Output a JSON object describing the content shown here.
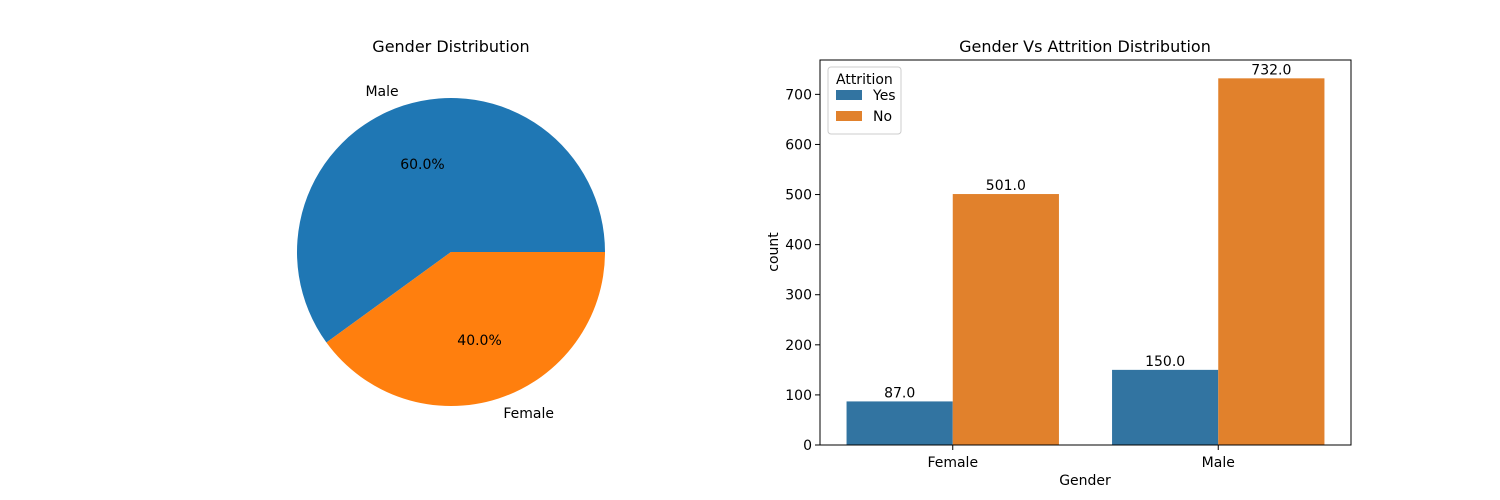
{
  "chart_data": [
    {
      "type": "pie",
      "title": "Gender Distribution",
      "slices": [
        {
          "label": "Male",
          "value": 60.0,
          "pct_label": "60.0%",
          "color": "#1f77b4"
        },
        {
          "label": "Female",
          "value": 40.0,
          "pct_label": "40.0%",
          "color": "#ff7f0e"
        }
      ]
    },
    {
      "type": "bar",
      "title": "Gender Vs Attrition Distribution",
      "xlabel": "Gender",
      "ylabel": "count",
      "categories": [
        "Female",
        "Male"
      ],
      "series": [
        {
          "name": "Yes",
          "values": [
            87.0,
            150.0
          ],
          "color": "#3274a1"
        },
        {
          "name": "No",
          "values": [
            501.0,
            732.0
          ],
          "color": "#e1812c"
        }
      ],
      "value_labels": [
        [
          "87.0",
          "150.0"
        ],
        [
          "501.0",
          "732.0"
        ]
      ],
      "ylim": [
        0,
        768.6
      ],
      "yticks": [
        0,
        100,
        200,
        300,
        400,
        500,
        600,
        700
      ],
      "legend": {
        "title": "Attrition",
        "position": "top-left"
      },
      "grid": false
    }
  ]
}
